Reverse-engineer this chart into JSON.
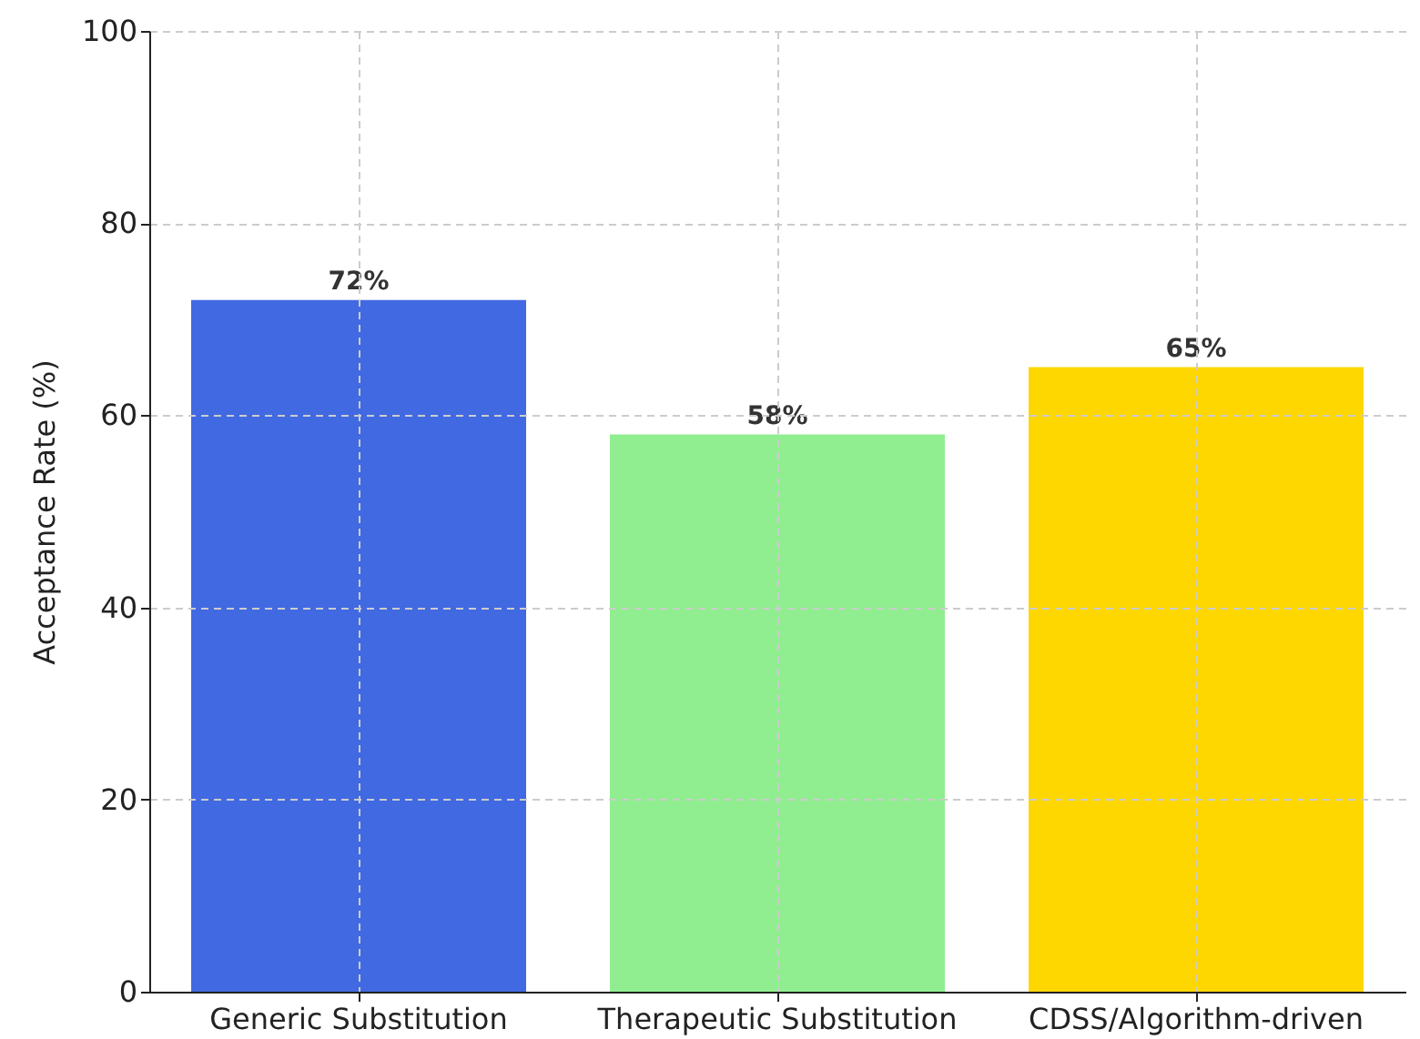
{
  "chart_data": {
    "type": "bar",
    "ylabel": "Acceptance Rate (%)",
    "categories": [
      "Generic Substitution",
      "Therapeutic Substitution",
      "CDSS/Algorithm-driven"
    ],
    "values": [
      72,
      58,
      65
    ],
    "colors": [
      "#4169e1",
      "#90ee90",
      "#ffd700"
    ],
    "value_labels": [
      "72%",
      "58%",
      "65%"
    ],
    "ylim": [
      0,
      100
    ],
    "yticks": [
      0,
      20,
      40,
      60,
      80,
      100
    ],
    "grid": true
  }
}
